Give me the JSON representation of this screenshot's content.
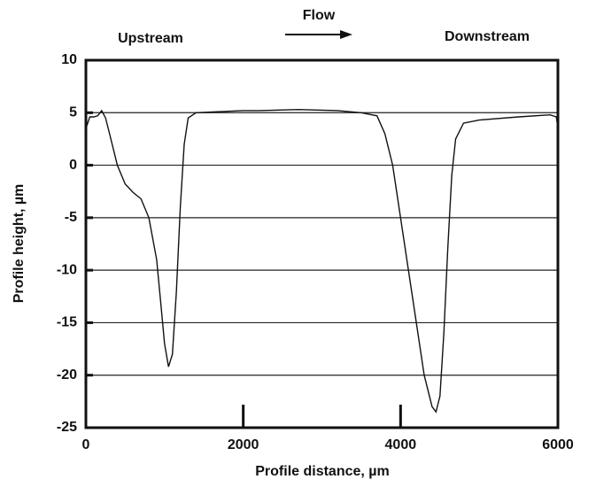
{
  "chart_data": {
    "type": "line",
    "annotations": [
      "Upstream",
      "Flow",
      "Downstream"
    ],
    "xlabel": "Profile distance, µm",
    "ylabel": "Profile height, µm",
    "x": [
      0,
      50,
      100,
      150,
      200,
      250,
      300,
      400,
      500,
      600,
      700,
      800,
      900,
      950,
      1000,
      1050,
      1100,
      1150,
      1200,
      1250,
      1300,
      1400,
      1700,
      2000,
      2200,
      2700,
      3200,
      3500,
      3700,
      3800,
      3900,
      4000,
      4100,
      4200,
      4300,
      4400,
      4450,
      4500,
      4550,
      4600,
      4650,
      4700,
      4800,
      5000,
      5500,
      5900,
      5980,
      6000
    ],
    "values": [
      3.5,
      4.6,
      4.6,
      4.7,
      5.2,
      4.5,
      3,
      0,
      -1.8,
      -2.6,
      -3.2,
      -5,
      -9,
      -13,
      -17,
      -19.2,
      -18,
      -12,
      -4,
      2,
      4.5,
      5,
      5.1,
      5.2,
      5.2,
      5.3,
      5.2,
      5,
      4.7,
      3,
      0,
      -5,
      -10,
      -15,
      -20,
      -23,
      -23.5,
      -22,
      -16,
      -8,
      -1,
      2.5,
      4,
      4.3,
      4.6,
      4.8,
      4.6,
      3.5
    ],
    "color": "#111111",
    "xlim": [
      0,
      6000
    ],
    "xticks": [
      0,
      2000,
      4000,
      6000
    ],
    "ylim": [
      -25,
      10
    ],
    "yticks": [
      10,
      5,
      0,
      -5,
      -10,
      -15,
      -20,
      -25
    ],
    "grid": true
  }
}
